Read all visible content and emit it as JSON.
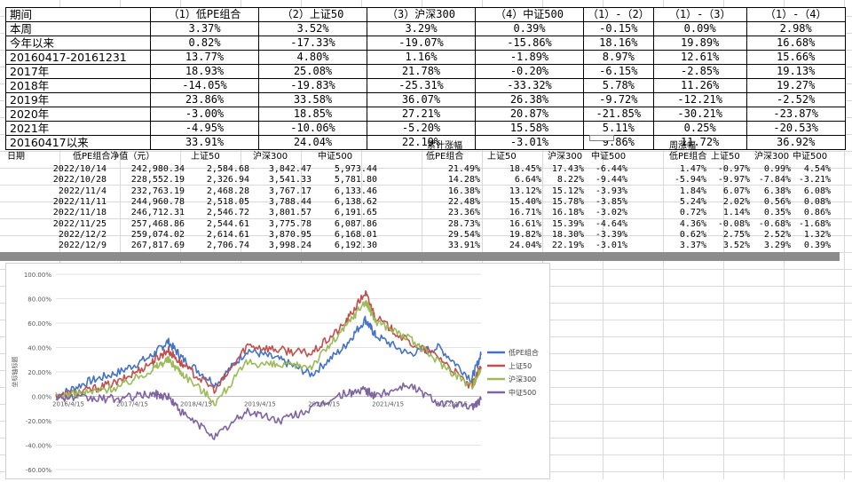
{
  "summary_table": {
    "headers": [
      "期间",
      "（1）低PE组合",
      "（2）上证50",
      "（3）沪深300",
      "（4）中证500",
      "（1）-（2）",
      "（1）-（3）",
      "（1）-（4）"
    ],
    "rows": [
      {
        "label": "本周",
        "values": [
          "3.37%",
          "3.52%",
          "3.29%",
          "0.39%",
          "-0.15%",
          "0.09%",
          "2.98%"
        ]
      },
      {
        "label": "今年以来",
        "values": [
          "0.82%",
          "-17.33%",
          "-19.07%",
          "-15.86%",
          "18.16%",
          "19.89%",
          "16.68%"
        ]
      },
      {
        "label": "20160417-20161231",
        "values": [
          "13.77%",
          "4.80%",
          "1.16%",
          "-1.89%",
          "8.97%",
          "12.61%",
          "15.66%"
        ]
      },
      {
        "label": "2017年",
        "values": [
          "18.93%",
          "25.08%",
          "21.78%",
          "-0.20%",
          "-6.15%",
          "-2.85%",
          "19.13%"
        ]
      },
      {
        "label": "2018年",
        "values": [
          "-14.05%",
          "-19.83%",
          "-25.31%",
          "-33.32%",
          "5.78%",
          "11.26%",
          "19.27%"
        ]
      },
      {
        "label": "2019年",
        "values": [
          "23.86%",
          "33.58%",
          "36.07%",
          "26.38%",
          "-9.72%",
          "-12.21%",
          "-2.52%"
        ]
      },
      {
        "label": "2020年",
        "values": [
          "-3.00%",
          "18.85%",
          "27.21%",
          "20.87%",
          "-21.85%",
          "-30.21%",
          "-23.87%"
        ]
      },
      {
        "label": "2021年",
        "values": [
          "-4.95%",
          "-10.06%",
          "-5.20%",
          "15.58%",
          "5.11%",
          "0.25%",
          "-20.53%"
        ]
      },
      {
        "label": "20160417以来",
        "values": [
          "33.91%",
          "24.04%",
          "22.19%",
          "-3.01%",
          "9.86%",
          "11.72%",
          "36.92%"
        ]
      }
    ]
  },
  "weekly_table": {
    "date_header": "日期",
    "nav_headers": [
      "低PE组合净值（元）",
      "上证50",
      "沪深300",
      "中证500"
    ],
    "cum_title": "累计涨幅",
    "cum_headers": [
      "低PE组合",
      "上证50",
      "沪深300",
      "中证500"
    ],
    "week_title": "周涨幅",
    "week_headers": [
      "低PE组合",
      "上证50",
      "沪深300",
      "中证500"
    ],
    "rows": [
      {
        "date": "2022/10/14",
        "nav": [
          "242,980.34",
          "2,584.68",
          "3,842.47",
          "5,973.44"
        ],
        "cum": [
          "21.49%",
          "18.45%",
          "17.43%",
          "-6.44%"
        ],
        "week": [
          "1.47%",
          "-0.97%",
          "0.99%",
          "4.54%"
        ]
      },
      {
        "date": "2022/10/28",
        "nav": [
          "228,552.19",
          "2,326.94",
          "3,541.33",
          "5,781.80"
        ],
        "cum": [
          "14.28%",
          "6.64%",
          "8.22%",
          "-9.44%"
        ],
        "week": [
          "-5.94%",
          "-9.97%",
          "-7.84%",
          "-3.21%"
        ]
      },
      {
        "date": "2022/11/4",
        "nav": [
          "232,763.19",
          "2,468.28",
          "3,767.17",
          "6,133.46"
        ],
        "cum": [
          "16.38%",
          "13.12%",
          "15.12%",
          "-3.93%"
        ],
        "week": [
          "1.84%",
          "6.07%",
          "6.38%",
          "6.08%"
        ]
      },
      {
        "date": "2022/11/11",
        "nav": [
          "244,960.78",
          "2,518.05",
          "3,788.44",
          "6,138.62"
        ],
        "cum": [
          "22.48%",
          "15.40%",
          "15.78%",
          "-3.85%"
        ],
        "week": [
          "5.24%",
          "2.02%",
          "0.56%",
          "0.08%"
        ]
      },
      {
        "date": "2022/11/18",
        "nav": [
          "246,712.31",
          "2,546.72",
          "3,801.57",
          "6,191.65"
        ],
        "cum": [
          "23.36%",
          "16.71%",
          "16.18%",
          "-3.02%"
        ],
        "week": [
          "0.72%",
          "1.14%",
          "0.35%",
          "0.86%"
        ]
      },
      {
        "date": "2022/11/25",
        "nav": [
          "257,468.86",
          "2,544.61",
          "3,775.78",
          "6,087.86"
        ],
        "cum": [
          "28.73%",
          "16.61%",
          "15.39%",
          "-4.64%"
        ],
        "week": [
          "4.36%",
          "-0.08%",
          "-0.68%",
          "-1.68%"
        ]
      },
      {
        "date": "2022/12/2",
        "nav": [
          "259,074.02",
          "2,614.61",
          "3,870.95",
          "6,168.01"
        ],
        "cum": [
          "29.54%",
          "19.82%",
          "18.30%",
          "-3.39%"
        ],
        "week": [
          "0.62%",
          "2.75%",
          "2.52%",
          "1.32%"
        ]
      },
      {
        "date": "2022/12/9",
        "nav": [
          "267,817.69",
          "2,706.74",
          "3,998.24",
          "6,192.30"
        ],
        "cum": [
          "33.91%",
          "24.04%",
          "22.19%",
          "-3.01%"
        ],
        "week": [
          "3.37%",
          "3.52%",
          "3.29%",
          "0.39%"
        ]
      }
    ]
  },
  "chart_data": {
    "type": "line",
    "ylabel": "坐标轴标题",
    "ylim": [
      -0.6,
      1.0
    ],
    "y_ticks": [
      "100.00%",
      "80.00%",
      "60.00%",
      "40.00%",
      "20.00%",
      "0.00%",
      "-20.00%",
      "-40.00%",
      "-60.00%"
    ],
    "x_ticks": [
      "2016/4/15",
      "2017/4/15",
      "2018/4/15",
      "2019/4/15",
      "2020/4/15",
      "2021/4/15",
      "2022/4/15"
    ],
    "grid": true,
    "legend": "right",
    "series": [
      {
        "name": "低PE组合",
        "color": "#4472c4",
        "x": [
          "2016/4/15",
          "2016/10/15",
          "2017/4/15",
          "2017/10/15",
          "2018/1/15",
          "2018/4/15",
          "2018/10/15",
          "2019/4/15",
          "2019/10/15",
          "2020/4/15",
          "2020/10/15",
          "2021/2/15",
          "2021/4/15",
          "2021/10/15",
          "2022/4/15",
          "2022/10/15",
          "2022/12/9"
        ],
        "values": [
          0.0,
          0.12,
          0.2,
          0.33,
          0.45,
          0.3,
          0.1,
          0.38,
          0.3,
          0.18,
          0.4,
          0.63,
          0.5,
          0.35,
          0.4,
          0.14,
          0.3391
        ]
      },
      {
        "name": "上证50",
        "color": "#c0504d",
        "x": [
          "2016/4/15",
          "2016/10/15",
          "2017/4/15",
          "2017/10/15",
          "2018/1/15",
          "2018/4/15",
          "2018/10/15",
          "2019/4/15",
          "2019/10/15",
          "2020/4/15",
          "2020/10/15",
          "2021/2/15",
          "2021/4/15",
          "2021/10/15",
          "2022/4/15",
          "2022/10/15",
          "2022/12/9"
        ],
        "values": [
          0.0,
          0.05,
          0.12,
          0.28,
          0.38,
          0.25,
          0.05,
          0.42,
          0.38,
          0.35,
          0.58,
          0.85,
          0.65,
          0.45,
          0.32,
          0.07,
          0.2404
        ]
      },
      {
        "name": "沪深300",
        "color": "#9bbb59",
        "x": [
          "2016/4/15",
          "2016/10/15",
          "2017/4/15",
          "2017/10/15",
          "2018/1/15",
          "2018/4/15",
          "2018/10/15",
          "2019/4/15",
          "2019/10/15",
          "2020/4/15",
          "2020/10/15",
          "2021/2/15",
          "2021/4/15",
          "2021/10/15",
          "2022/4/15",
          "2022/10/15",
          "2022/12/9"
        ],
        "values": [
          0.0,
          0.03,
          0.08,
          0.22,
          0.3,
          0.18,
          -0.05,
          0.28,
          0.25,
          0.25,
          0.55,
          0.78,
          0.62,
          0.48,
          0.28,
          0.08,
          0.2219
        ]
      },
      {
        "name": "中证500",
        "color": "#8064a2",
        "x": [
          "2016/4/15",
          "2016/10/15",
          "2017/4/15",
          "2017/10/15",
          "2018/1/15",
          "2018/4/15",
          "2018/10/15",
          "2019/4/15",
          "2019/10/15",
          "2020/4/15",
          "2020/10/15",
          "2021/2/15",
          "2021/4/15",
          "2021/10/15",
          "2022/4/15",
          "2022/10/15",
          "2022/12/9"
        ],
        "values": [
          0.0,
          -0.02,
          -0.02,
          0.02,
          0.0,
          -0.15,
          -0.33,
          -0.12,
          -0.2,
          -0.1,
          0.02,
          0.05,
          0.0,
          0.1,
          -0.05,
          -0.09,
          -0.0301
        ]
      }
    ]
  }
}
